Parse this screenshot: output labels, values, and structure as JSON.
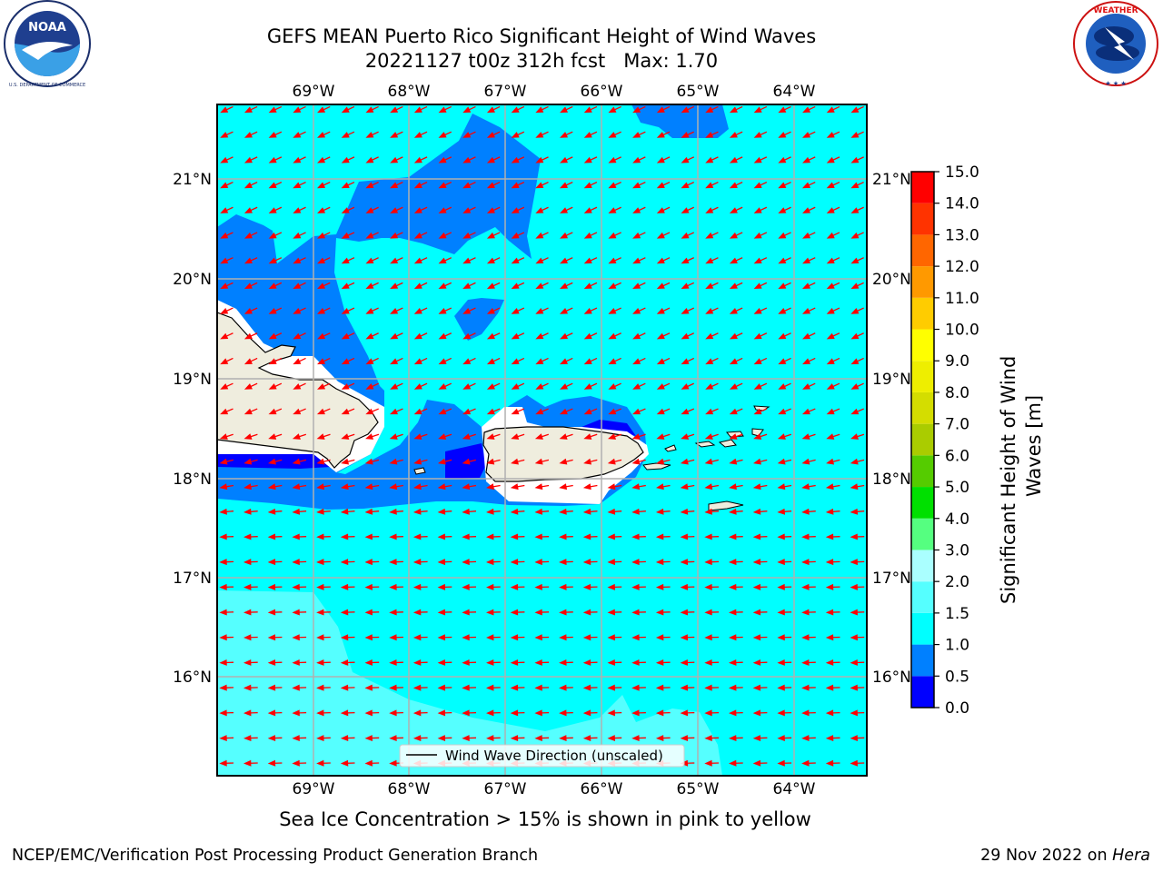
{
  "title": {
    "line1": "GEFS MEAN Puerto Rico Significant Height of Wind Waves",
    "line2": "20221127 t00z 312h fcst   Max: 1.70"
  },
  "logos": {
    "left": {
      "text": "NOAA",
      "ring_top": "NATIONAL OCEANIC AND ATMOSPHERIC ADMINISTRATION",
      "ring_bottom": "U.S. DEPARTMENT OF COMMERCE"
    },
    "right": {
      "ring_text": "NATIONAL WEATHER SERVICE"
    }
  },
  "map": {
    "lon_labels": [
      "69°W",
      "68°W",
      "67°W",
      "66°W",
      "65°W",
      "64°W"
    ],
    "lat_labels": [
      "21°N",
      "20°N",
      "19°N",
      "18°N",
      "17°N",
      "16°N"
    ],
    "legend_label": "Wind Wave Direction (unscaled)",
    "arrow_color": "#ff0000",
    "ocean_color": "#00ffff",
    "land_color": "#efedde"
  },
  "colorbar": {
    "label_line1": "Significant Height of Wind",
    "label_line2": "Waves [m]",
    "ticks": [
      "0.0",
      "0.5",
      "1.0",
      "1.5",
      "2.0",
      "3.0",
      "4.0",
      "5.0",
      "6.0",
      "7.0",
      "8.0",
      "9.0",
      "10.0",
      "11.0",
      "12.0",
      "13.0",
      "14.0",
      "15.0"
    ],
    "colors": [
      "#0000ff",
      "#0080ff",
      "#00ffff",
      "#55ffff",
      "#aaffff",
      "#55ff80",
      "#00e000",
      "#55cc00",
      "#aacc00",
      "#d4dd00",
      "#eeee00",
      "#ffff00",
      "#ffcc00",
      "#ff9900",
      "#ff6600",
      "#ff3300",
      "#ff0000"
    ]
  },
  "sea_ice_note": "Sea Ice Concentration > 15% is shown in pink to yellow",
  "footer": {
    "left": "NCEP/EMC/Verification Post Processing Product Generation Branch",
    "right_prefix": "29 Nov 2022 on ",
    "right_italic": "Hera"
  }
}
